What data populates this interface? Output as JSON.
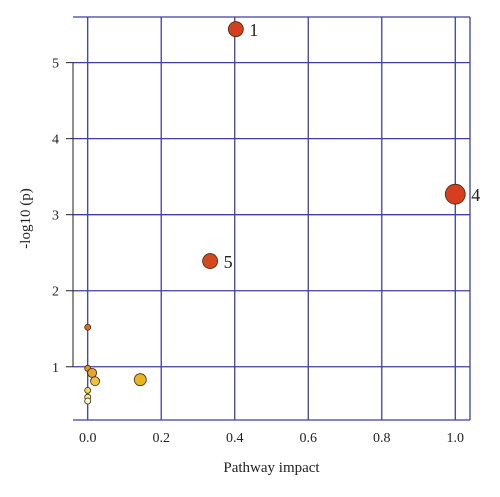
{
  "chart_data": {
    "type": "scatter",
    "xlabel": "Pathway impact",
    "ylabel": "-log10 (p)",
    "xlim": [
      -0.04,
      1.04
    ],
    "ylim": [
      0.3,
      5.6
    ],
    "x_ticks": [
      0.0,
      0.2,
      0.4,
      0.6,
      0.8,
      1.0
    ],
    "x_tick_labels": [
      "0.0",
      "0.2",
      "0.4",
      "0.6",
      "0.8",
      "1.0"
    ],
    "y_ticks": [
      1,
      2,
      3,
      4,
      5
    ],
    "y_tick_labels": [
      "1",
      "2",
      "3",
      "4",
      "5"
    ],
    "grid": true,
    "grid_color": "#3f3fa0",
    "points": [
      {
        "x": 0.403,
        "y": 5.44,
        "label": "1",
        "color": "#d53f1e",
        "size": "large"
      },
      {
        "x": 1.0,
        "y": 3.27,
        "label": "4",
        "color": "#d53f1e",
        "size": "xlarge"
      },
      {
        "x": 0.333,
        "y": 2.39,
        "label": "5",
        "color": "#d5481e",
        "size": "large"
      },
      {
        "x": 0.0,
        "y": 1.52,
        "label": "",
        "color": "#e06a1f",
        "size": "tiny"
      },
      {
        "x": 0.0,
        "y": 0.98,
        "label": "",
        "color": "#e8921f",
        "size": "tiny"
      },
      {
        "x": 0.012,
        "y": 0.92,
        "label": "",
        "color": "#e9a525",
        "size": "small"
      },
      {
        "x": 0.02,
        "y": 0.81,
        "label": "",
        "color": "#f2c03a",
        "size": "small"
      },
      {
        "x": 0.143,
        "y": 0.83,
        "label": "",
        "color": "#eab322",
        "size": "medium"
      },
      {
        "x": 0.0,
        "y": 0.69,
        "label": "",
        "color": "#f6d84e",
        "size": "tiny"
      },
      {
        "x": 0.0,
        "y": 0.6,
        "label": "",
        "color": "#f9ec88",
        "size": "tiny"
      },
      {
        "x": 0.0,
        "y": 0.55,
        "label": "",
        "color": "#fdf8d2",
        "size": "tiny"
      }
    ]
  }
}
